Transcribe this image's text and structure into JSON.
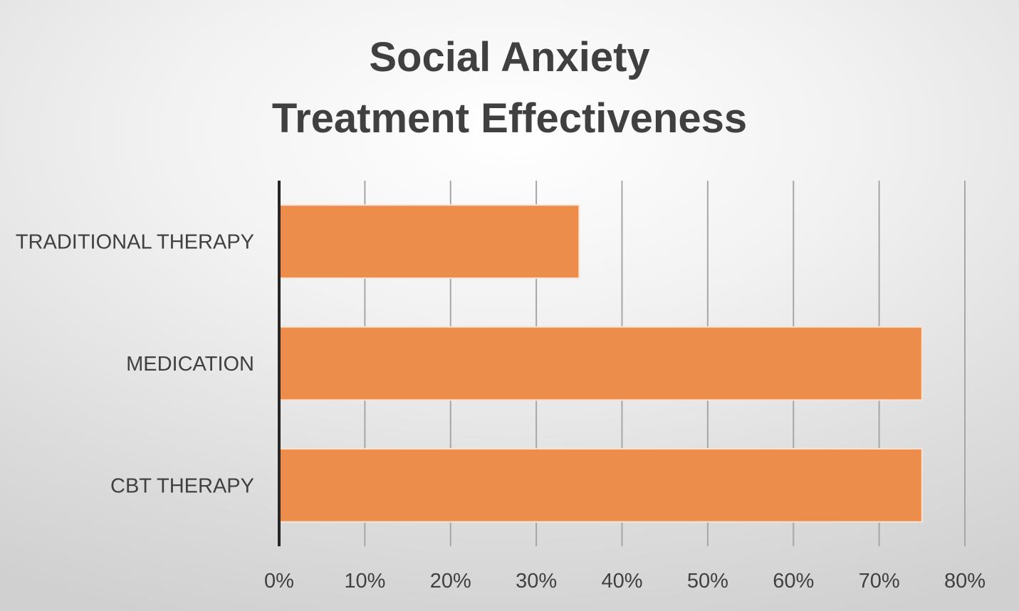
{
  "chart_data": {
    "type": "bar",
    "orientation": "horizontal",
    "title_lines": [
      "Social Anxiety",
      "Treatment Effectiveness"
    ],
    "categories": [
      "TRADITIONAL THERAPY",
      "MEDICATION",
      "CBT THERAPY"
    ],
    "values": [
      35,
      75,
      75
    ],
    "value_unit": "%",
    "xlim": [
      0,
      80
    ],
    "xticks": [
      0,
      10,
      20,
      30,
      40,
      50,
      60,
      70,
      80
    ],
    "xtick_labels": [
      "0%",
      "10%",
      "20%",
      "30%",
      "40%",
      "50%",
      "60%",
      "70%",
      "80%"
    ],
    "grid": true,
    "legend": "none",
    "colors": {
      "bar": "#ed8d4c",
      "bar_edge": "#fbe3d4",
      "grid": "#a6a6a6",
      "axis": "#262626",
      "text": "#404040"
    }
  }
}
